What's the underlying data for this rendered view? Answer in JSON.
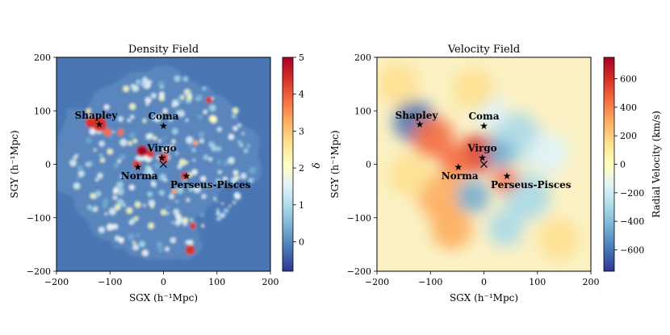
{
  "chart_data": [
    {
      "type": "heatmap",
      "title": "Density Field",
      "xlabel": "SGX (h⁻¹Mpc)",
      "ylabel": "SGY (h⁻¹Mpc)",
      "xlim": [
        -200,
        200
      ],
      "ylim": [
        -200,
        200
      ],
      "xticks": [
        -200,
        -100,
        0,
        100,
        200
      ],
      "yticks": [
        -200,
        -100,
        0,
        100,
        200
      ],
      "colorbar": {
        "label": "δ",
        "range": [
          -0.8,
          5.0
        ],
        "ticks": [
          0,
          1,
          2,
          3,
          4,
          5
        ],
        "colormap": "RdYlBu_r"
      },
      "structures": [
        {
          "name": "Shapley",
          "x": -120,
          "y": 75
        },
        {
          "name": "Coma",
          "x": 0,
          "y": 72
        },
        {
          "name": "Virgo",
          "x": -3,
          "y": 12
        },
        {
          "name": "Norma",
          "x": -48,
          "y": -5
        },
        {
          "name": "Perseus-Pisces",
          "x": 43,
          "y": -22
        }
      ],
      "observer": {
        "x": 0,
        "y": 0,
        "marker": "x"
      }
    },
    {
      "type": "heatmap",
      "title": "Velocity Field",
      "xlabel": "SGX (h⁻¹Mpc)",
      "ylabel": "SGY (h⁻¹Mpc)",
      "xlim": [
        -200,
        200
      ],
      "ylim": [
        -200,
        200
      ],
      "xticks": [
        -200,
        -100,
        0,
        100,
        200
      ],
      "yticks": [
        -200,
        -100,
        0,
        100,
        200
      ],
      "colorbar": {
        "label": "Radial Velocity (km/s)",
        "range": [
          -750,
          750
        ],
        "ticks": [
          -600,
          -400,
          -200,
          0,
          200,
          400,
          600
        ],
        "colormap": "RdYlBu_r"
      },
      "structures": [
        {
          "name": "Shapley",
          "x": -120,
          "y": 75
        },
        {
          "name": "Coma",
          "x": 0,
          "y": 72
        },
        {
          "name": "Virgo",
          "x": -3,
          "y": 12
        },
        {
          "name": "Norma",
          "x": -48,
          "y": -5
        },
        {
          "name": "Perseus-Pisces",
          "x": 43,
          "y": -22
        }
      ],
      "observer": {
        "x": 0,
        "y": 0,
        "marker": "x"
      }
    }
  ],
  "colors": {
    "density_background": "#5a86bd",
    "outside_region": "#4a76b4",
    "colormap_stops": [
      "#313695",
      "#4575b4",
      "#74add1",
      "#abd9e9",
      "#e0f3f8",
      "#ffffbf",
      "#fee090",
      "#fdae61",
      "#f46d43",
      "#d73027",
      "#a50026"
    ]
  }
}
